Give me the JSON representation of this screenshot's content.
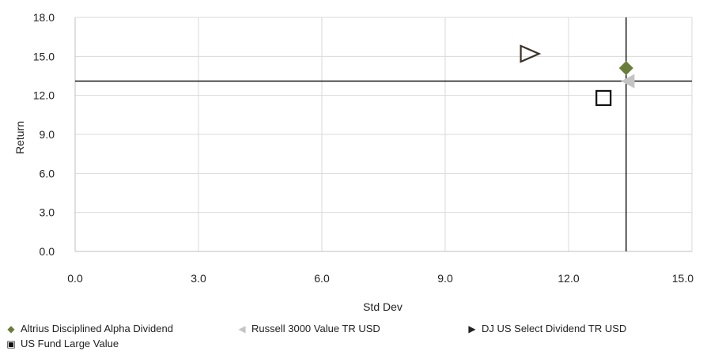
{
  "chart_data": {
    "type": "scatter",
    "xlabel": "Std Dev",
    "ylabel": "Return",
    "xlim": [
      0,
      15
    ],
    "ylim": [
      0,
      18
    ],
    "xticks": [
      "0.0",
      "3.0",
      "6.0",
      "9.0",
      "12.0",
      "15.0"
    ],
    "yticks": [
      "0.0",
      "3.0",
      "6.0",
      "9.0",
      "12.0",
      "15.0",
      "18.0"
    ],
    "grid": true,
    "legend_position": "bottom",
    "reference_lines": {
      "x": 13.4,
      "y": 13.1
    },
    "series": [
      {
        "name": "Altrius Disciplined Alpha Dividend",
        "marker": "diamond",
        "color": "#6b7d3a",
        "x": 13.4,
        "y": 14.1
      },
      {
        "name": "Russell 3000 Value TR USD",
        "marker": "triangle-left",
        "color": "#c4c4c4",
        "x": 13.45,
        "y": 13.1
      },
      {
        "name": "DJ US Select Dividend TR USD",
        "marker": "triangle-right-open",
        "color": "#3a3228",
        "x": 11.05,
        "y": 15.2
      },
      {
        "name": "US Fund Large Value",
        "marker": "square-open",
        "color": "#111111",
        "x": 12.85,
        "y": 11.8
      }
    ]
  }
}
